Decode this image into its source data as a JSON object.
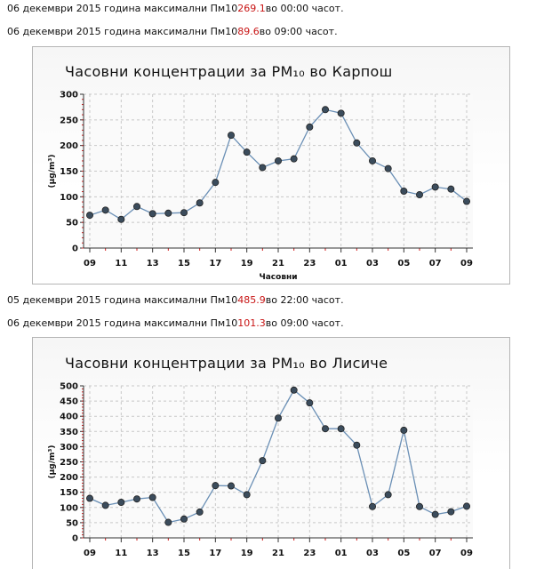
{
  "summaries": [
    {
      "prefix": "06 декември 2015 година максимални Пм10",
      "value": "269.1",
      "suffix": "во 00:00 часот."
    },
    {
      "prefix": "06 декември 2015 година максимални Пм10",
      "value": "89.6",
      "suffix": "во 09:00 часот."
    },
    {
      "prefix": "05 декември 2015 година максимални Пм10",
      "value": "485.9",
      "suffix": "во 22:00 часот."
    },
    {
      "prefix": "06 декември 2015 година максимални Пм10",
      "value": "101.3",
      "suffix": "во 09:00 часот."
    }
  ],
  "chart_data": [
    {
      "type": "line",
      "title": "Часовни концентрации за PM₁₀ во Карпош",
      "xlabel": "Часовни",
      "ylabel": "(µg/m³)",
      "ylim": [
        0,
        300
      ],
      "yticks": [
        "0",
        "50",
        "100",
        "150",
        "200",
        "250",
        "300"
      ],
      "xtick_labels": [
        "09",
        "11",
        "13",
        "15",
        "17",
        "19",
        "21",
        "23",
        "01",
        "03",
        "05",
        "07",
        "09"
      ],
      "x": [
        "09",
        "10",
        "11",
        "12",
        "13",
        "14",
        "15",
        "16",
        "17",
        "18",
        "19",
        "20",
        "21",
        "22",
        "23",
        "00",
        "01",
        "02",
        "03",
        "04",
        "05",
        "06",
        "07",
        "08",
        "09"
      ],
      "grid": true,
      "series": [
        {
          "values": [
            64,
            74,
            56,
            81,
            67,
            68,
            69,
            88,
            128,
            220,
            187,
            157,
            170,
            174,
            236,
            270,
            263,
            205,
            170,
            155,
            111,
            104,
            119,
            115,
            91
          ],
          "color": "#6a8fb5"
        }
      ]
    },
    {
      "type": "line",
      "title": "Часовни концентрации за PM₁₀ во Лисиче",
      "xlabel": "",
      "ylabel": "(µg/m³)",
      "ylim": [
        0,
        500
      ],
      "yticks": [
        "0",
        "50",
        "100",
        "150",
        "200",
        "250",
        "300",
        "350",
        "400",
        "450",
        "500"
      ],
      "xtick_labels": [
        "09",
        "11",
        "13",
        "15",
        "17",
        "19",
        "21",
        "23",
        "01",
        "03",
        "05",
        "07",
        "09"
      ],
      "x": [
        "09",
        "10",
        "11",
        "12",
        "13",
        "14",
        "15",
        "16",
        "17",
        "18",
        "19",
        "20",
        "21",
        "22",
        "23",
        "00",
        "01",
        "02",
        "03",
        "04",
        "05",
        "06",
        "07",
        "08",
        "09"
      ],
      "grid": true,
      "series": [
        {
          "values": [
            130,
            107,
            117,
            128,
            133,
            51,
            62,
            85,
            172,
            171,
            142,
            254,
            394,
            486,
            444,
            359,
            359,
            305,
            103,
            142,
            354,
            103,
            77,
            86,
            104
          ],
          "color": "#6a8fb5"
        }
      ]
    }
  ]
}
